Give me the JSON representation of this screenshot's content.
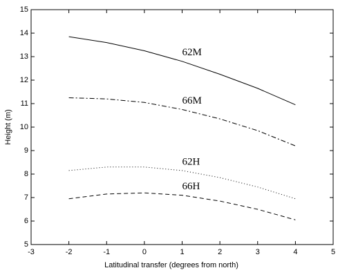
{
  "chart_data": {
    "type": "line",
    "xlabel": "Latitudinal transfer (degrees from north)",
    "ylabel": "Height (m)",
    "x": [
      -2,
      -1,
      0,
      1,
      2,
      3,
      4
    ],
    "series": [
      {
        "name": "62M",
        "color": "#000000",
        "line_style": "solid",
        "values": [
          13.85,
          13.6,
          13.25,
          12.8,
          12.25,
          11.65,
          10.95
        ]
      },
      {
        "name": "66M",
        "color": "#000000",
        "line_style": "dashdot",
        "values": [
          11.25,
          11.2,
          11.05,
          10.75,
          10.35,
          9.85,
          9.2
        ]
      },
      {
        "name": "62H",
        "color": "#000000",
        "line_style": "dotted",
        "values": [
          8.15,
          8.3,
          8.3,
          8.15,
          7.85,
          7.45,
          6.95
        ]
      },
      {
        "name": "66H",
        "color": "#000000",
        "line_style": "dashed",
        "values": [
          6.95,
          7.15,
          7.2,
          7.1,
          6.85,
          6.5,
          6.05
        ]
      }
    ],
    "xlim": [
      -3,
      5
    ],
    "xticks": [
      -3,
      -2,
      -1,
      0,
      1,
      2,
      3,
      4,
      5
    ],
    "ylim": [
      5,
      15
    ],
    "yticks": [
      5,
      6,
      7,
      8,
      9,
      10,
      11,
      12,
      13,
      14,
      15
    ],
    "grid": false
  }
}
